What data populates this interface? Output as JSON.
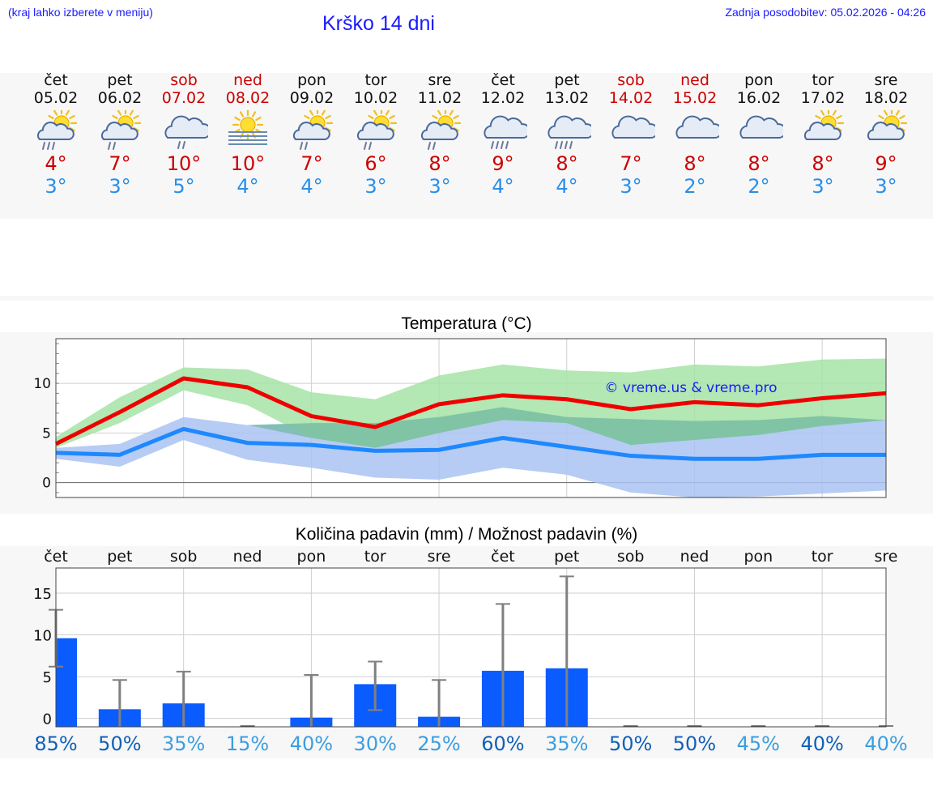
{
  "header": {
    "left_note": "(kraj lahko izberete v meniju)",
    "title": "Krško 14 dni",
    "updated": "Zadnja posodobitev: 05.02.2026 - 04:26"
  },
  "days": [
    {
      "name": "čet",
      "date": "05.02",
      "weekend": false,
      "icon": "sun-cloud-rain-icon",
      "hi": "4°",
      "lo": "3°"
    },
    {
      "name": "pet",
      "date": "06.02",
      "weekend": false,
      "icon": "sun-cloud-light-rain-icon",
      "hi": "7°",
      "lo": "3°"
    },
    {
      "name": "sob",
      "date": "07.02",
      "weekend": true,
      "icon": "cloud-light-rain-icon",
      "hi": "10°",
      "lo": "5°"
    },
    {
      "name": "ned",
      "date": "08.02",
      "weekend": true,
      "icon": "sun-fog-icon",
      "hi": "10°",
      "lo": "4°"
    },
    {
      "name": "pon",
      "date": "09.02",
      "weekend": false,
      "icon": "sun-cloud-light-rain-icon",
      "hi": "7°",
      "lo": "4°"
    },
    {
      "name": "tor",
      "date": "10.02",
      "weekend": false,
      "icon": "sun-cloud-light-rain-icon",
      "hi": "6°",
      "lo": "3°"
    },
    {
      "name": "sre",
      "date": "11.02",
      "weekend": false,
      "icon": "sun-cloud-light-rain-icon",
      "hi": "8°",
      "lo": "3°"
    },
    {
      "name": "čet",
      "date": "12.02",
      "weekend": false,
      "icon": "cloud-rain-icon",
      "hi": "9°",
      "lo": "4°"
    },
    {
      "name": "pet",
      "date": "13.02",
      "weekend": false,
      "icon": "cloud-rain-icon",
      "hi": "8°",
      "lo": "4°"
    },
    {
      "name": "sob",
      "date": "14.02",
      "weekend": true,
      "icon": "cloud-icon",
      "hi": "7°",
      "lo": "3°"
    },
    {
      "name": "ned",
      "date": "15.02",
      "weekend": true,
      "icon": "cloud-icon",
      "hi": "8°",
      "lo": "2°"
    },
    {
      "name": "pon",
      "date": "16.02",
      "weekend": false,
      "icon": "cloud-icon",
      "hi": "8°",
      "lo": "2°"
    },
    {
      "name": "tor",
      "date": "17.02",
      "weekend": false,
      "icon": "sun-cloud-icon",
      "hi": "8°",
      "lo": "3°"
    },
    {
      "name": "sre",
      "date": "18.02",
      "weekend": false,
      "icon": "sun-cloud-icon",
      "hi": "9°",
      "lo": "3°"
    }
  ],
  "colors": {
    "max_line": "#ee0000",
    "max_band": "#a6e3a6",
    "min_line": "#1e88ff",
    "min_band": "#a9c3f2",
    "bar": "#0a5cff",
    "error_bar": "#808080",
    "weekend_text": "#cc0000",
    "pct_dark": "#1060b8",
    "pct_light": "#3a9ee0"
  },
  "chart_data": [
    {
      "type": "line",
      "title": "Temperatura (°C)",
      "watermark": "© vreme.us & vreme.pro",
      "categories": [
        "05.02",
        "06.02",
        "07.02",
        "08.02",
        "09.02",
        "10.02",
        "11.02",
        "12.02",
        "13.02",
        "14.02",
        "15.02",
        "16.02",
        "17.02",
        "18.02"
      ],
      "ylim": [
        -1.5,
        14.5
      ],
      "yticks": [
        0,
        5,
        10
      ],
      "grid": true,
      "series": [
        {
          "name": "max",
          "values": [
            3.9,
            7.1,
            10.5,
            9.6,
            6.7,
            5.6,
            7.9,
            8.8,
            8.4,
            7.4,
            8.1,
            7.8,
            8.5,
            9.0
          ],
          "band_low": [
            3.5,
            6.0,
            9.3,
            7.8,
            4.5,
            3.5,
            5.0,
            6.3,
            6.0,
            3.8,
            4.3,
            4.8,
            5.7,
            6.3
          ],
          "band_high": [
            4.6,
            8.6,
            11.6,
            11.4,
            9.1,
            8.4,
            10.8,
            11.9,
            11.3,
            11.1,
            11.9,
            11.7,
            12.4,
            12.5
          ]
        },
        {
          "name": "min",
          "values": [
            3.0,
            2.8,
            5.4,
            4.0,
            3.8,
            3.2,
            3.3,
            4.5,
            3.6,
            2.7,
            2.4,
            2.4,
            2.8,
            2.8
          ],
          "band_low": [
            2.4,
            1.6,
            4.3,
            2.3,
            1.5,
            0.5,
            0.3,
            1.5,
            0.8,
            -1.0,
            -1.5,
            -1.4,
            -1.1,
            -0.8
          ],
          "band_high": [
            3.5,
            3.9,
            6.6,
            5.8,
            6.0,
            6.0,
            6.6,
            7.6,
            6.6,
            6.4,
            6.2,
            6.3,
            6.7,
            6.3
          ]
        }
      ]
    },
    {
      "type": "bar",
      "title": "Količina padavin (mm) / Možnost padavin (%)",
      "categories": [
        "čet",
        "pet",
        "sob",
        "ned",
        "pon",
        "tor",
        "sre",
        "čet",
        "pet",
        "sob",
        "ned",
        "pon",
        "tor",
        "sre"
      ],
      "ylim": [
        -1,
        18
      ],
      "yticks": [
        0,
        5,
        10,
        15
      ],
      "grid": true,
      "values": [
        9.6,
        1.1,
        1.8,
        0.0,
        0.1,
        4.1,
        0.2,
        5.7,
        6.0,
        0.0,
        0.0,
        0.0,
        0.0,
        0.0
      ],
      "error_low": [
        6.2,
        0.0,
        0.0,
        0.0,
        0.0,
        1.0,
        0.0,
        0.0,
        0.0,
        0.0,
        0.0,
        0.0,
        0.0,
        0.0
      ],
      "error_high": [
        13.0,
        4.6,
        5.6,
        0.0,
        5.2,
        6.8,
        4.6,
        13.7,
        17.0,
        0.0,
        0.0,
        0.0,
        0.0,
        0.0
      ],
      "probability": [
        "85%",
        "50%",
        "35%",
        "15%",
        "40%",
        "30%",
        "25%",
        "60%",
        "35%",
        "50%",
        "50%",
        "45%",
        "40%",
        "40%"
      ],
      "probability_dark": [
        true,
        true,
        false,
        false,
        false,
        false,
        false,
        true,
        false,
        true,
        true,
        false,
        true,
        false
      ]
    }
  ]
}
